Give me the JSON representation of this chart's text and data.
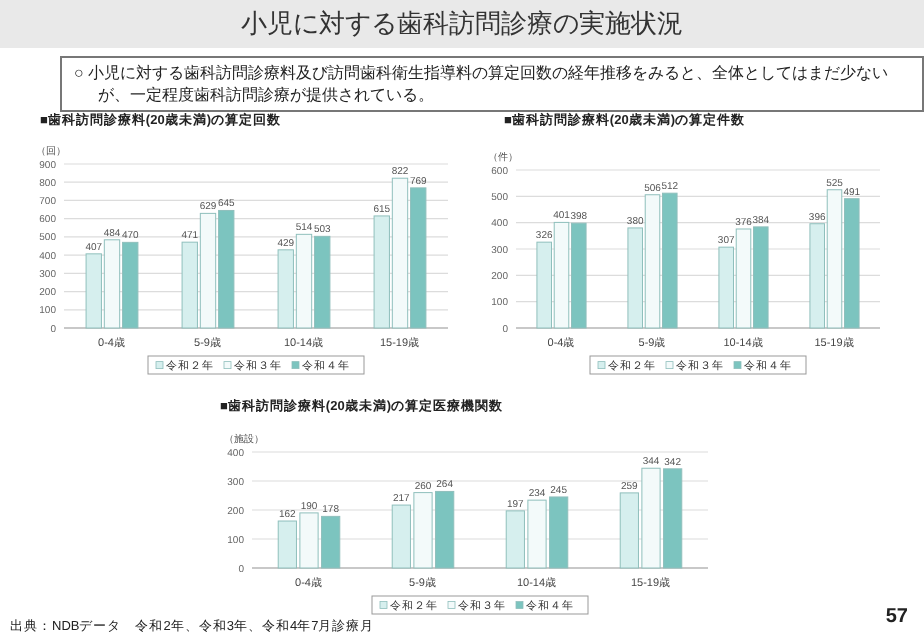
{
  "chart_data": [
    {
      "type": "other",
      "title": "小児に対する歯科訪問診療の実施状況",
      "annotations": [
        "○ 小児に対する歯科訪問診療料及び訪問歯科衛生指導料の算定回数の経年推移をみると、全体としてはまだ少ないが、一定程度歯科訪問診療が提供されている。",
        "出典：NDBデータ　令和2年、令和3年、令和4年7月診療月",
        "57"
      ]
    },
    {
      "type": "bar",
      "title": "■歯科訪問診療料(20歳未満)の算定回数",
      "ylabel": "（回）",
      "categories": [
        "0-4歳",
        "5-9歳",
        "10-14歳",
        "15-19歳"
      ],
      "series": [
        {
          "name": "令和２年",
          "color": "#d6efee",
          "values": [
            407,
            471,
            429,
            615
          ]
        },
        {
          "name": "令和３年",
          "color": "#f3fafa",
          "values": [
            484,
            629,
            514,
            822
          ]
        },
        {
          "name": "令和４年",
          "color": "#7cc4bf",
          "values": [
            470,
            645,
            503,
            769
          ]
        }
      ],
      "ylim": [
        0,
        900
      ],
      "yticks": [
        0,
        100,
        200,
        300,
        400,
        500,
        600,
        700,
        800,
        900
      ],
      "data_labels": true,
      "legend": "bottom",
      "grid": "y"
    },
    {
      "type": "bar",
      "title": "■歯科訪問診療料(20歳未満)の算定件数",
      "ylabel": "（件）",
      "categories": [
        "0-4歳",
        "5-9歳",
        "10-14歳",
        "15-19歳"
      ],
      "series": [
        {
          "name": "令和２年",
          "color": "#d6efee",
          "values": [
            326,
            380,
            307,
            396
          ]
        },
        {
          "name": "令和３年",
          "color": "#f3fafa",
          "values": [
            401,
            506,
            376,
            525
          ]
        },
        {
          "name": "令和４年",
          "color": "#7cc4bf",
          "values": [
            398,
            512,
            384,
            491
          ]
        }
      ],
      "ylim": [
        0,
        600
      ],
      "yticks": [
        0,
        100,
        200,
        300,
        400,
        500,
        600
      ],
      "data_labels": true,
      "legend": "bottom",
      "grid": "y"
    },
    {
      "type": "bar",
      "title": "■歯科訪問診療料(20歳未満)の算定医療機関数",
      "ylabel": "（施設）",
      "categories": [
        "0-4歳",
        "5-9歳",
        "10-14歳",
        "15-19歳"
      ],
      "series": [
        {
          "name": "令和２年",
          "color": "#d6efee",
          "values": [
            162,
            217,
            197,
            259
          ]
        },
        {
          "name": "令和３年",
          "color": "#f3fafa",
          "values": [
            190,
            260,
            234,
            344
          ]
        },
        {
          "name": "令和４年",
          "color": "#7cc4bf",
          "values": [
            178,
            264,
            245,
            342
          ]
        }
      ],
      "ylim": [
        0,
        400
      ],
      "yticks": [
        0,
        100,
        200,
        300,
        400
      ],
      "data_labels": true,
      "legend": "bottom",
      "grid": "y"
    }
  ]
}
